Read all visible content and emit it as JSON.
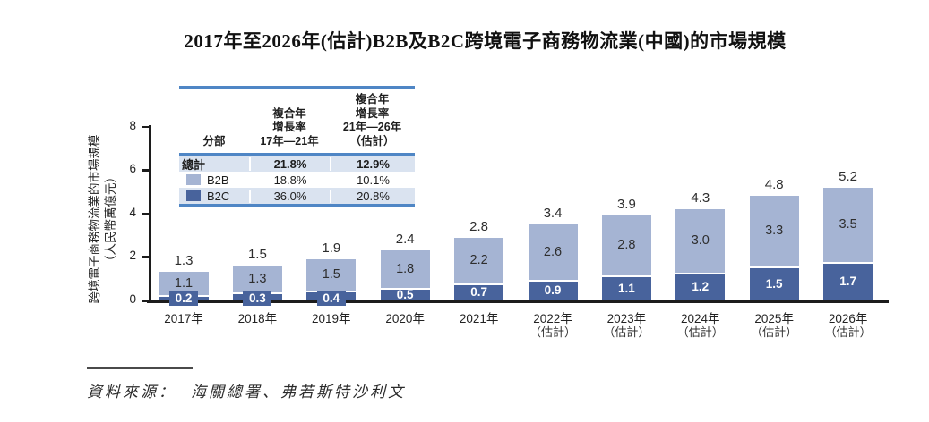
{
  "title": "2017年至2026年(估計)B2B及B2C跨境電子商務物流業(中國)的市場規模",
  "y_axis": {
    "title_line1": "跨境電子商務物流業的市場規模",
    "title_line2": "（人民幣萬億元）",
    "ticks": [
      "0",
      "2",
      "4",
      "6",
      "8"
    ]
  },
  "legend_table": {
    "header": {
      "segment": "分部",
      "cagr_17_21": "複合年\n增長率\n17年—21年",
      "cagr_21_26": "複合年\n增長率\n21年—26年\n（估計）"
    },
    "rows": [
      {
        "label": "總計",
        "cagr_17_21": "21.8%",
        "cagr_21_26": "12.9%"
      },
      {
        "label": "B2B",
        "cagr_17_21": "18.8%",
        "cagr_21_26": "10.1%"
      },
      {
        "label": "B2C",
        "cagr_17_21": "36.0%",
        "cagr_21_26": "20.8%"
      }
    ]
  },
  "chart_data": {
    "type": "bar",
    "stacked": true,
    "title": "2017年至2026年(估計)B2B及B2C跨境電子商務物流業(中國)的市場規模",
    "ylabel": "跨境電子商務物流業的市場規模（人民幣萬億元）",
    "ylim": [
      0,
      8
    ],
    "grid": false,
    "legend_position": "top-left-table",
    "categories": [
      "2017年",
      "2018年",
      "2019年",
      "2020年",
      "2021年",
      "2022年（估計）",
      "2023年（估計）",
      "2024年（估計）",
      "2025年（估計）",
      "2026年（估計）"
    ],
    "series": [
      {
        "name": "B2B",
        "color": "#A5B4D3",
        "values": [
          1.1,
          1.3,
          1.5,
          1.8,
          2.2,
          2.6,
          2.8,
          3.0,
          3.3,
          3.5
        ]
      },
      {
        "name": "B2C",
        "color": "#48639C",
        "values": [
          0.2,
          0.3,
          0.4,
          0.5,
          0.7,
          0.9,
          1.1,
          1.2,
          1.5,
          1.7
        ]
      }
    ],
    "totals": [
      1.3,
      1.5,
      1.9,
      2.4,
      2.8,
      3.4,
      3.9,
      4.3,
      4.8,
      5.2
    ]
  },
  "colors": {
    "b2b": "#A5B4D3",
    "b2c": "#48639C",
    "table_accent": "#4F86C5",
    "table_row_bg": "#DAE3F0",
    "axis": "#1c1c1c"
  },
  "source": {
    "label": "資料來源：",
    "text": "海關總署、弗若斯特沙利文"
  }
}
